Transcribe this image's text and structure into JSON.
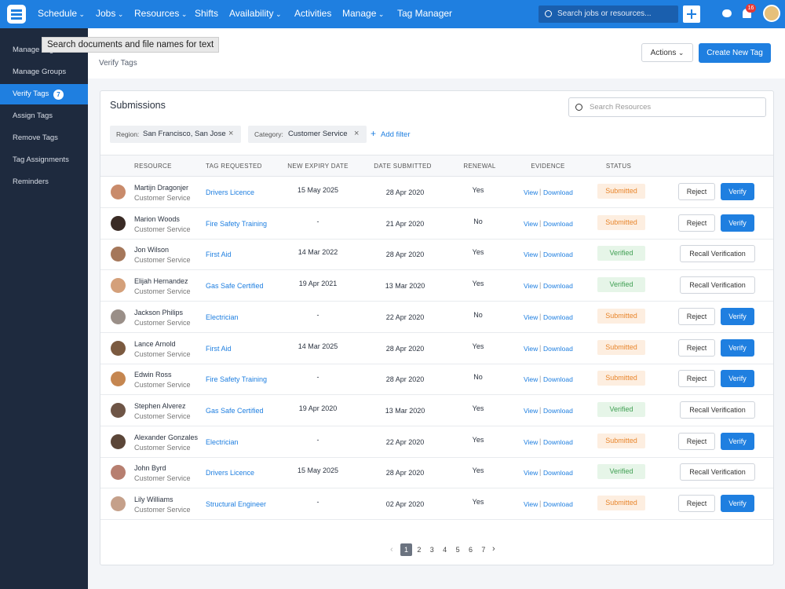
{
  "nav": {
    "items": [
      {
        "label": "Schedule",
        "dropdown": true
      },
      {
        "label": "Jobs",
        "dropdown": true
      },
      {
        "label": "Resources",
        "dropdown": true
      },
      {
        "label": "Shifts",
        "dropdown": false
      },
      {
        "label": "Availability",
        "dropdown": true
      },
      {
        "label": "Activities",
        "dropdown": false
      },
      {
        "label": "Manage",
        "dropdown": true
      },
      {
        "label": "Tag Manager",
        "dropdown": false
      }
    ],
    "search_placeholder": "Search jobs or resources...",
    "notification_count": "16"
  },
  "tooltip": "Search documents and file names for text",
  "sidebar": {
    "items": [
      "Manage Tags",
      "Manage Groups",
      "Verify Tags",
      "Assign Tags",
      "Remove Tags",
      "Tag Assignments",
      "Reminders"
    ],
    "active": 2,
    "active_badge": "7"
  },
  "header": {
    "subtitle": "Verify Tags",
    "actions_button": "Actions",
    "create_button": "Create New Tag"
  },
  "panel": {
    "title": "Submissions",
    "search_placeholder": "Search Resources",
    "filters": [
      {
        "label": "Region:",
        "value": "San Francisco, San Jose"
      },
      {
        "label": "Category:",
        "value": "Customer Service"
      }
    ],
    "add_filter": "Add filter"
  },
  "table": {
    "columns": [
      "RESOURCE",
      "TAG REQUESTED",
      "NEW EXPIRY DATE",
      "DATE SUBMITTED",
      "RENEWAL",
      "EVIDENCE",
      "STATUS"
    ],
    "evidence": [
      "View",
      "Download"
    ],
    "rows": [
      {
        "name": "Martijn Dragonjer",
        "role": "Customer Service",
        "tag": "Drivers Licence",
        "expiry": "15 May 2025",
        "submitted": "28 Apr 2020",
        "renewal": "Yes",
        "status": "Submitted",
        "status_color": "#e8862c",
        "status_bg": "#fdeee0",
        "actions": [
          "Reject",
          "Verify"
        ]
      },
      {
        "name": "Marion Woods",
        "role": "Customer Service",
        "tag": "Fire Safety Training",
        "expiry": "-",
        "submitted": "21 Apr 2020",
        "renewal": "No",
        "status": "Submitted",
        "status_color": "#e8862c",
        "status_bg": "#fdeee0",
        "actions": [
          "Reject",
          "Verify"
        ]
      },
      {
        "name": "Jon Wilson",
        "role": "Customer Service",
        "tag": "First Aid",
        "expiry": "14 Mar 2022",
        "submitted": "28 Apr 2020",
        "renewal": "Yes",
        "status": "Verified",
        "status_color": "#3f9f52",
        "status_bg": "#e6f5e8",
        "actions": [
          "Recall Verification"
        ]
      },
      {
        "name": "Elijah Hernandez",
        "role": "Customer Service",
        "tag": "Gas Safe Certified",
        "expiry": "19 Apr 2021",
        "submitted": "13 Mar 2020",
        "renewal": "Yes",
        "status": "Verified",
        "status_color": "#3f9f52",
        "status_bg": "#e6f5e8",
        "actions": [
          "Recall Verification"
        ]
      },
      {
        "name": "Jackson Philips",
        "role": "Customer Service",
        "tag": "Electrician",
        "expiry": "-",
        "submitted": "22 Apr 2020",
        "renewal": "No",
        "status": "Submitted",
        "status_color": "#e8862c",
        "status_bg": "#fdeee0",
        "actions": [
          "Reject",
          "Verify"
        ]
      },
      {
        "name": "Lance Arnold",
        "role": "Customer Service",
        "tag": "First Aid",
        "expiry": "14 Mar 2025",
        "submitted": "28 Apr 2020",
        "renewal": "Yes",
        "status": "Submitted",
        "status_color": "#e8862c",
        "status_bg": "#fdeee0",
        "actions": [
          "Reject",
          "Verify"
        ]
      },
      {
        "name": "Edwin Ross",
        "role": "Customer Service",
        "tag": "Fire Safety Training",
        "expiry": "-",
        "submitted": "28 Apr 2020",
        "renewal": "No",
        "status": "Submitted",
        "status_color": "#e8862c",
        "status_bg": "#fdeee0",
        "actions": [
          "Reject",
          "Verify"
        ]
      },
      {
        "name": "Stephen Alverez",
        "role": "Customer Service",
        "tag": "Gas Safe Certified",
        "expiry": "19 Apr 2020",
        "submitted": "13 Mar 2020",
        "renewal": "Yes",
        "status": "Verified",
        "status_color": "#3f9f52",
        "status_bg": "#e6f5e8",
        "actions": [
          "Recall Verification"
        ]
      },
      {
        "name": "Alexander Gonzales",
        "role": "Customer Service",
        "tag": "Electrician",
        "expiry": "-",
        "submitted": "22 Apr 2020",
        "renewal": "Yes",
        "status": "Submitted",
        "status_color": "#e8862c",
        "status_bg": "#fdeee0",
        "actions": [
          "Reject",
          "Verify"
        ]
      },
      {
        "name": "John Byrd",
        "role": "Customer Service",
        "tag": "Drivers Licence",
        "expiry": "15 May 2025",
        "submitted": "28 Apr 2020",
        "renewal": "Yes",
        "status": "Verified",
        "status_color": "#3f9f52",
        "status_bg": "#e6f5e8",
        "actions": [
          "Recall Verification"
        ]
      },
      {
        "name": "Lily Williams",
        "role": "Customer Service",
        "tag": "Structural Engineer",
        "expiry": "-",
        "submitted": "02 Apr 2020",
        "renewal": "Yes",
        "status": "Submitted",
        "status_color": "#e8862c",
        "status_bg": "#fdeee0",
        "actions": [
          "Reject",
          "Verify"
        ]
      }
    ]
  },
  "pagination": {
    "pages": [
      "1",
      "2",
      "3",
      "4",
      "5",
      "6",
      "7"
    ],
    "current": 0
  }
}
